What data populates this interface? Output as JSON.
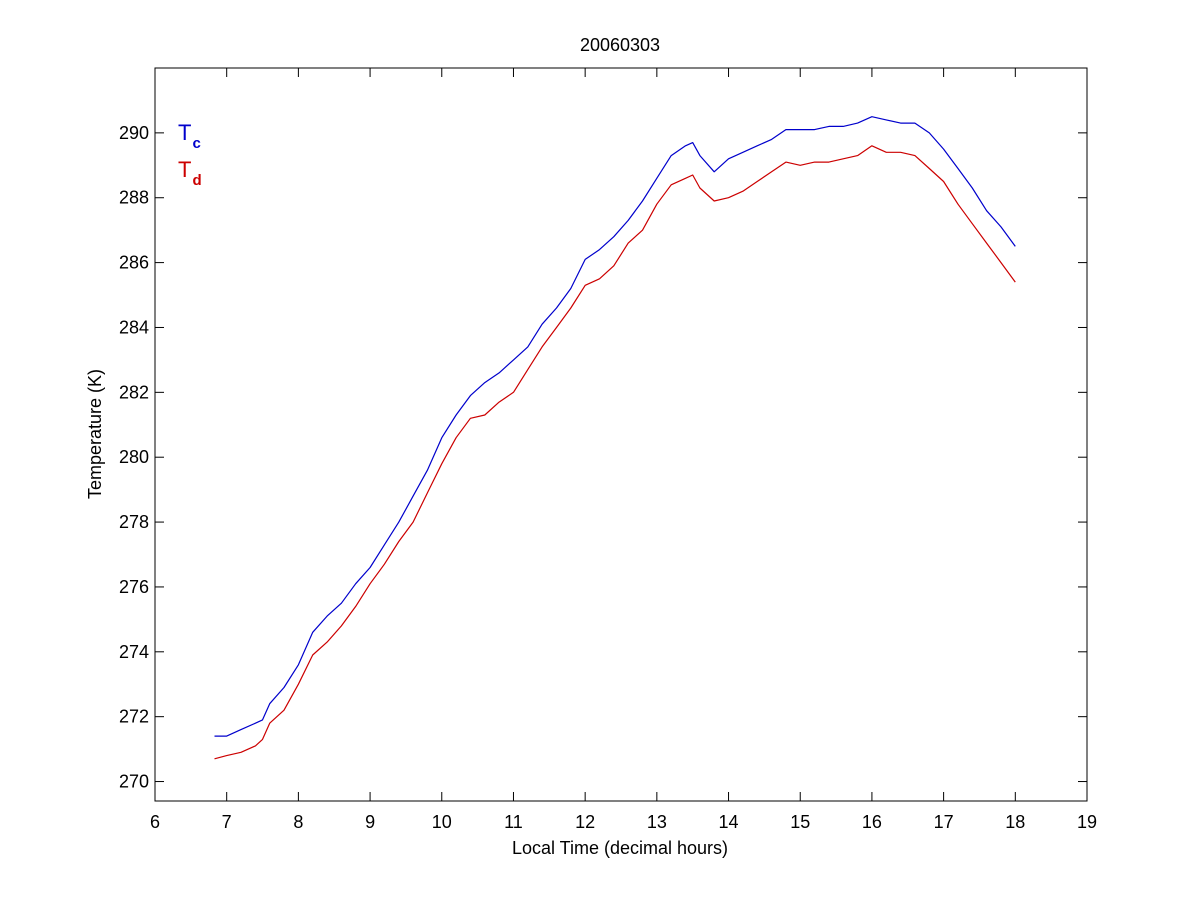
{
  "chart_data": {
    "type": "line",
    "title": "20060303",
    "xlabel": "Local Time (decimal hours)",
    "ylabel": "Temperature (K)",
    "xlim": [
      6,
      19
    ],
    "ylim": [
      269.4,
      292.0
    ],
    "xticks": [
      6,
      7,
      8,
      9,
      10,
      11,
      12,
      13,
      14,
      15,
      16,
      17,
      18,
      19
    ],
    "yticks": [
      270,
      272,
      274,
      276,
      278,
      280,
      282,
      284,
      286,
      288,
      290
    ],
    "grid": false,
    "legend_placement": "top-left",
    "series": [
      {
        "key": "tc",
        "legend_main": "T",
        "legend_sub": "c",
        "color": "#0000cc",
        "points": [
          [
            6.83,
            271.4
          ],
          [
            7.0,
            271.4
          ],
          [
            7.2,
            271.6
          ],
          [
            7.4,
            271.8
          ],
          [
            7.5,
            271.9
          ],
          [
            7.6,
            272.4
          ],
          [
            7.8,
            272.9
          ],
          [
            8.0,
            273.6
          ],
          [
            8.2,
            274.6
          ],
          [
            8.4,
            275.1
          ],
          [
            8.6,
            275.5
          ],
          [
            8.8,
            276.1
          ],
          [
            9.0,
            276.6
          ],
          [
            9.2,
            277.3
          ],
          [
            9.4,
            278.0
          ],
          [
            9.6,
            278.8
          ],
          [
            9.8,
            279.6
          ],
          [
            10.0,
            280.6
          ],
          [
            10.2,
            281.3
          ],
          [
            10.4,
            281.9
          ],
          [
            10.6,
            282.3
          ],
          [
            10.8,
            282.6
          ],
          [
            11.0,
            283.0
          ],
          [
            11.2,
            283.4
          ],
          [
            11.4,
            284.1
          ],
          [
            11.6,
            284.6
          ],
          [
            11.8,
            285.2
          ],
          [
            12.0,
            286.1
          ],
          [
            12.2,
            286.4
          ],
          [
            12.4,
            286.8
          ],
          [
            12.6,
            287.3
          ],
          [
            12.8,
            287.9
          ],
          [
            13.0,
            288.6
          ],
          [
            13.2,
            289.3
          ],
          [
            13.4,
            289.6
          ],
          [
            13.5,
            289.7
          ],
          [
            13.6,
            289.3
          ],
          [
            13.8,
            288.8
          ],
          [
            14.0,
            289.2
          ],
          [
            14.2,
            289.4
          ],
          [
            14.4,
            289.6
          ],
          [
            14.6,
            289.8
          ],
          [
            14.8,
            290.1
          ],
          [
            15.0,
            290.1
          ],
          [
            15.2,
            290.1
          ],
          [
            15.4,
            290.2
          ],
          [
            15.6,
            290.2
          ],
          [
            15.8,
            290.3
          ],
          [
            16.0,
            290.5
          ],
          [
            16.2,
            290.4
          ],
          [
            16.4,
            290.3
          ],
          [
            16.6,
            290.3
          ],
          [
            16.8,
            290.0
          ],
          [
            17.0,
            289.5
          ],
          [
            17.2,
            288.9
          ],
          [
            17.4,
            288.3
          ],
          [
            17.6,
            287.6
          ],
          [
            17.8,
            287.1
          ],
          [
            18.0,
            286.5
          ]
        ]
      },
      {
        "key": "td",
        "legend_main": "T",
        "legend_sub": "d",
        "color": "#cc0000",
        "points": [
          [
            6.83,
            270.7
          ],
          [
            7.0,
            270.8
          ],
          [
            7.2,
            270.9
          ],
          [
            7.4,
            271.1
          ],
          [
            7.5,
            271.3
          ],
          [
            7.6,
            271.8
          ],
          [
            7.8,
            272.2
          ],
          [
            8.0,
            273.0
          ],
          [
            8.2,
            273.9
          ],
          [
            8.4,
            274.3
          ],
          [
            8.6,
            274.8
          ],
          [
            8.8,
            275.4
          ],
          [
            9.0,
            276.1
          ],
          [
            9.2,
            276.7
          ],
          [
            9.4,
            277.4
          ],
          [
            9.6,
            278.0
          ],
          [
            9.8,
            278.9
          ],
          [
            10.0,
            279.8
          ],
          [
            10.2,
            280.6
          ],
          [
            10.4,
            281.2
          ],
          [
            10.6,
            281.3
          ],
          [
            10.8,
            281.7
          ],
          [
            11.0,
            282.0
          ],
          [
            11.2,
            282.7
          ],
          [
            11.4,
            283.4
          ],
          [
            11.6,
            284.0
          ],
          [
            11.8,
            284.6
          ],
          [
            12.0,
            285.3
          ],
          [
            12.2,
            285.5
          ],
          [
            12.4,
            285.9
          ],
          [
            12.6,
            286.6
          ],
          [
            12.8,
            287.0
          ],
          [
            13.0,
            287.8
          ],
          [
            13.2,
            288.4
          ],
          [
            13.4,
            288.6
          ],
          [
            13.5,
            288.7
          ],
          [
            13.6,
            288.3
          ],
          [
            13.8,
            287.9
          ],
          [
            14.0,
            288.0
          ],
          [
            14.2,
            288.2
          ],
          [
            14.4,
            288.5
          ],
          [
            14.6,
            288.8
          ],
          [
            14.8,
            289.1
          ],
          [
            15.0,
            289.0
          ],
          [
            15.2,
            289.1
          ],
          [
            15.4,
            289.1
          ],
          [
            15.6,
            289.2
          ],
          [
            15.8,
            289.3
          ],
          [
            16.0,
            289.6
          ],
          [
            16.2,
            289.4
          ],
          [
            16.4,
            289.4
          ],
          [
            16.6,
            289.3
          ],
          [
            16.8,
            288.9
          ],
          [
            17.0,
            288.5
          ],
          [
            17.2,
            287.8
          ],
          [
            17.4,
            287.2
          ],
          [
            17.6,
            286.6
          ],
          [
            17.8,
            286.0
          ],
          [
            18.0,
            285.4
          ]
        ]
      }
    ]
  }
}
